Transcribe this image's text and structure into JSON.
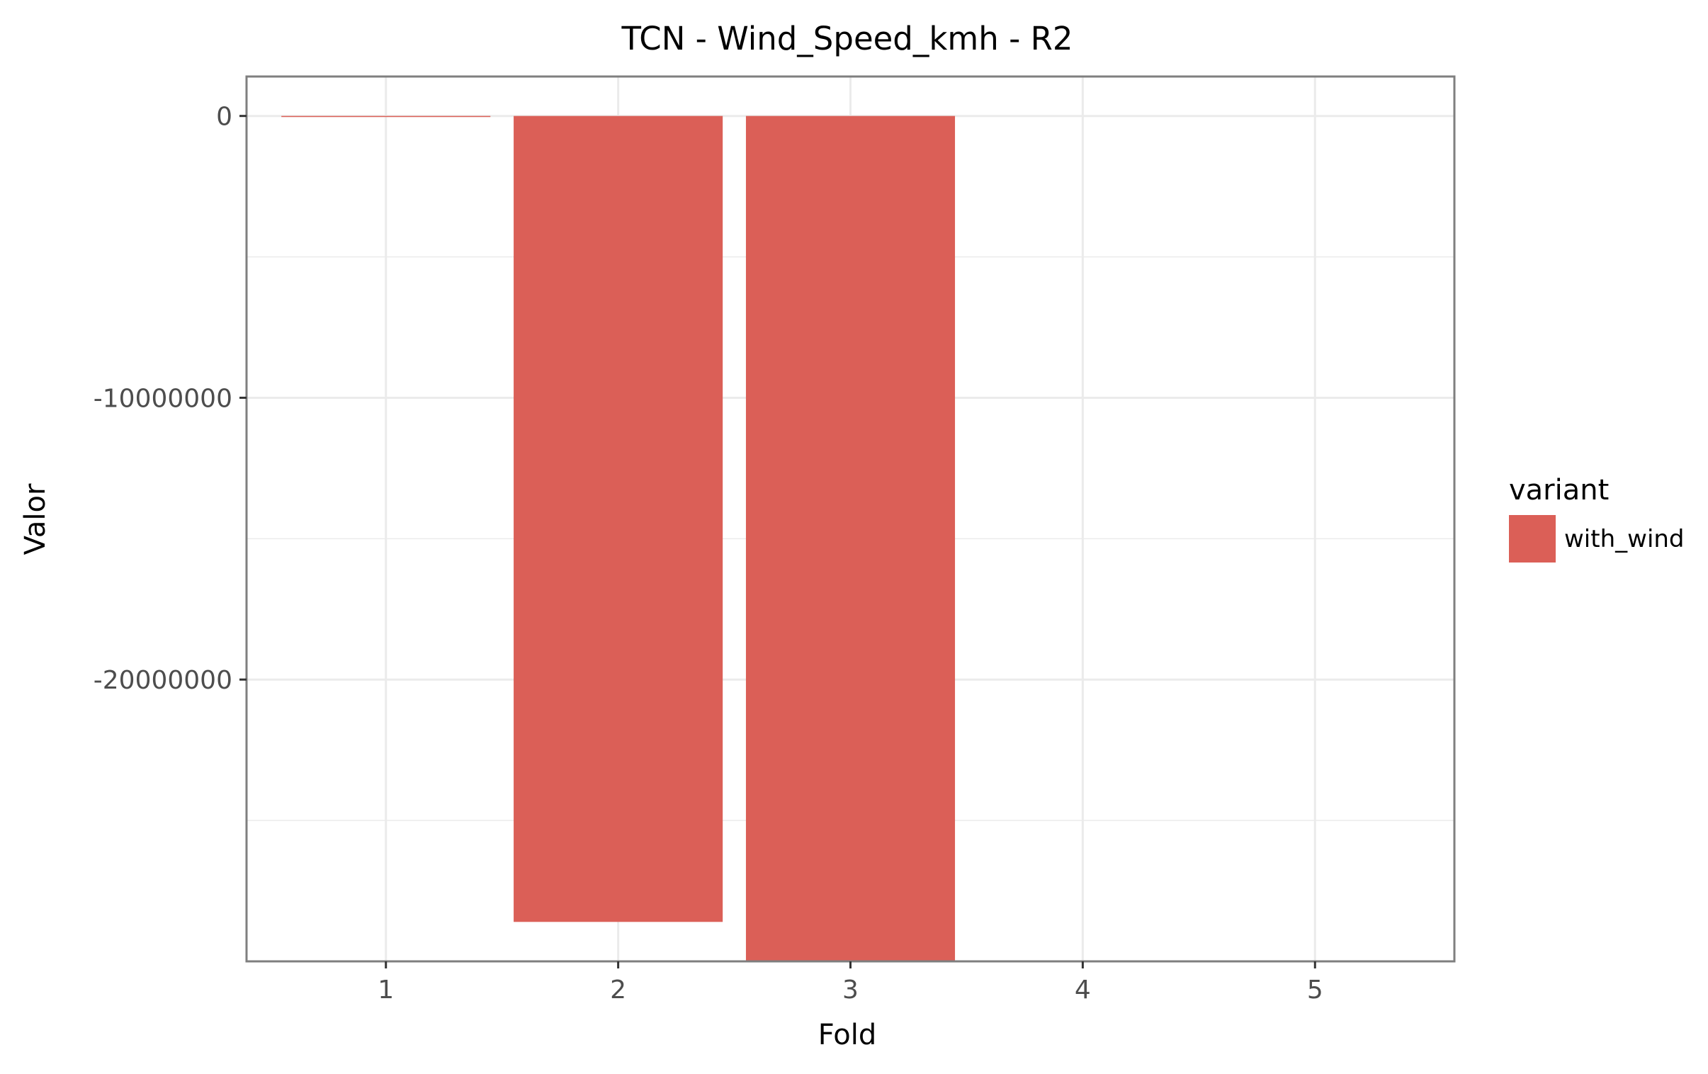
{
  "chart_data": {
    "type": "bar",
    "title": "TCN - Wind_Speed_kmh - R2",
    "xlabel": "Fold",
    "ylabel": "Valor",
    "categories": [
      "1",
      "2",
      "3",
      "4",
      "5"
    ],
    "series": [
      {
        "name": "with_wind",
        "values": [
          -0.5,
          -28600000,
          -30000000,
          null,
          null
        ]
      }
    ],
    "ylim": [
      -30000000,
      1400000
    ],
    "y_ticks": [
      0,
      -10000000,
      -20000000
    ],
    "y_tick_labels": [
      "0",
      "-10000000",
      "-20000000"
    ],
    "y_minor_ticks": [
      -5000000,
      -15000000,
      -25000000
    ],
    "grid": true,
    "legend": {
      "title": "variant",
      "position": "right"
    },
    "colors": {
      "with_wind": "#db5f57",
      "grid": "#ebebeb",
      "panel_border": "#7f7f7f"
    }
  }
}
